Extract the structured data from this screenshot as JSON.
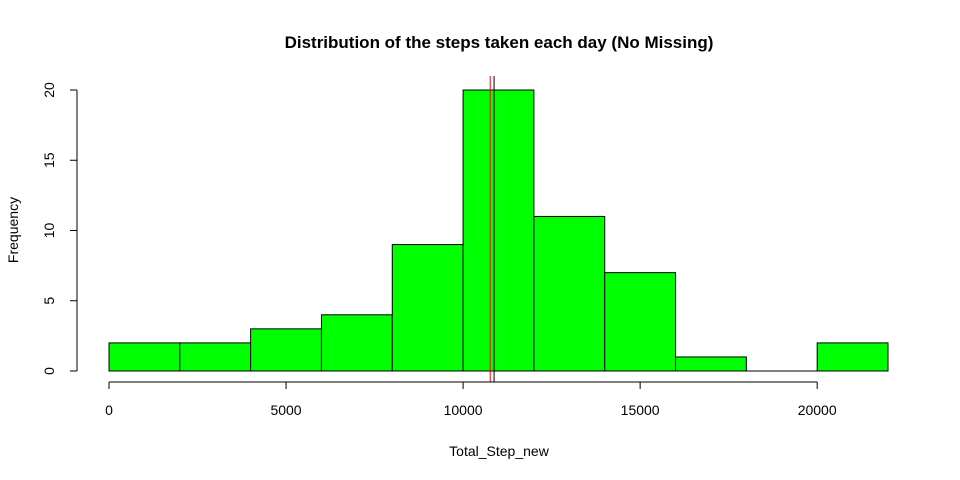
{
  "chart_data": {
    "type": "histogram",
    "title": "Distribution of the steps taken each day (No Missing)",
    "xlabel": "Total_Step_new",
    "ylabel": "Frequency",
    "xlim": [
      0,
      22000
    ],
    "ylim": [
      0,
      20
    ],
    "bins": [
      {
        "x0": 0,
        "x1": 2000,
        "count": 2
      },
      {
        "x0": 2000,
        "x1": 4000,
        "count": 2
      },
      {
        "x0": 4000,
        "x1": 6000,
        "count": 3
      },
      {
        "x0": 6000,
        "x1": 8000,
        "count": 4
      },
      {
        "x0": 8000,
        "x1": 10000,
        "count": 9
      },
      {
        "x0": 10000,
        "x1": 12000,
        "count": 20
      },
      {
        "x0": 12000,
        "x1": 14000,
        "count": 11
      },
      {
        "x0": 14000,
        "x1": 16000,
        "count": 7
      },
      {
        "x0": 16000,
        "x1": 18000,
        "count": 1
      },
      {
        "x0": 18000,
        "x1": 20000,
        "count": 0
      },
      {
        "x0": 20000,
        "x1": 22000,
        "count": 2
      }
    ],
    "x_ticks": [
      0,
      5000,
      10000,
      15000,
      20000
    ],
    "y_ticks": [
      0,
      5,
      10,
      15,
      20
    ],
    "vlines": [
      {
        "x": 10766,
        "color": "#ff0000"
      },
      {
        "x": 10875,
        "color": "#000000"
      }
    ],
    "bar_color": "#00ff00",
    "bar_edge_color": "#000000",
    "grid": false,
    "legend": "none"
  }
}
